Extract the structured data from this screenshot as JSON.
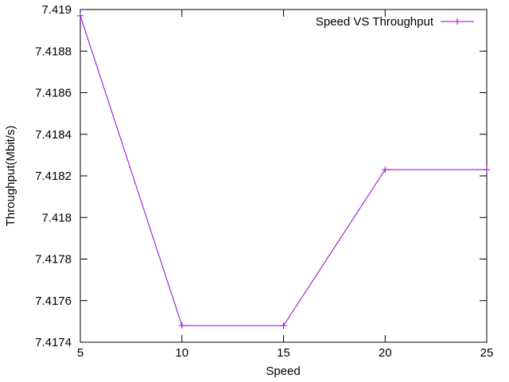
{
  "chart_data": {
    "type": "line",
    "title": "",
    "xlabel": "Speed",
    "ylabel": "Throughput(Mbit/s)",
    "xlim": [
      5,
      25
    ],
    "ylim": [
      7.4174,
      7.419
    ],
    "x_ticks": [
      5,
      10,
      15,
      20,
      25
    ],
    "x_tick_labels": [
      "5",
      "10",
      "15",
      "20",
      "25"
    ],
    "y_ticks": [
      7.4174,
      7.4176,
      7.4178,
      7.418,
      7.4182,
      7.4184,
      7.4186,
      7.4188,
      7.419
    ],
    "y_tick_labels": [
      "7.4174",
      "7.4176",
      "7.4178",
      "7.418",
      "7.4182",
      "7.4184",
      "7.4186",
      "7.4188",
      "7.419"
    ],
    "grid": false,
    "legend_position": "top-right",
    "series": [
      {
        "name": "Speed VS Throughput",
        "color": "#9400d3",
        "marker": "plus",
        "x": [
          5,
          10,
          15,
          20,
          25
        ],
        "y": [
          7.41897,
          7.41748,
          7.41748,
          7.41823,
          7.41823
        ]
      }
    ]
  }
}
